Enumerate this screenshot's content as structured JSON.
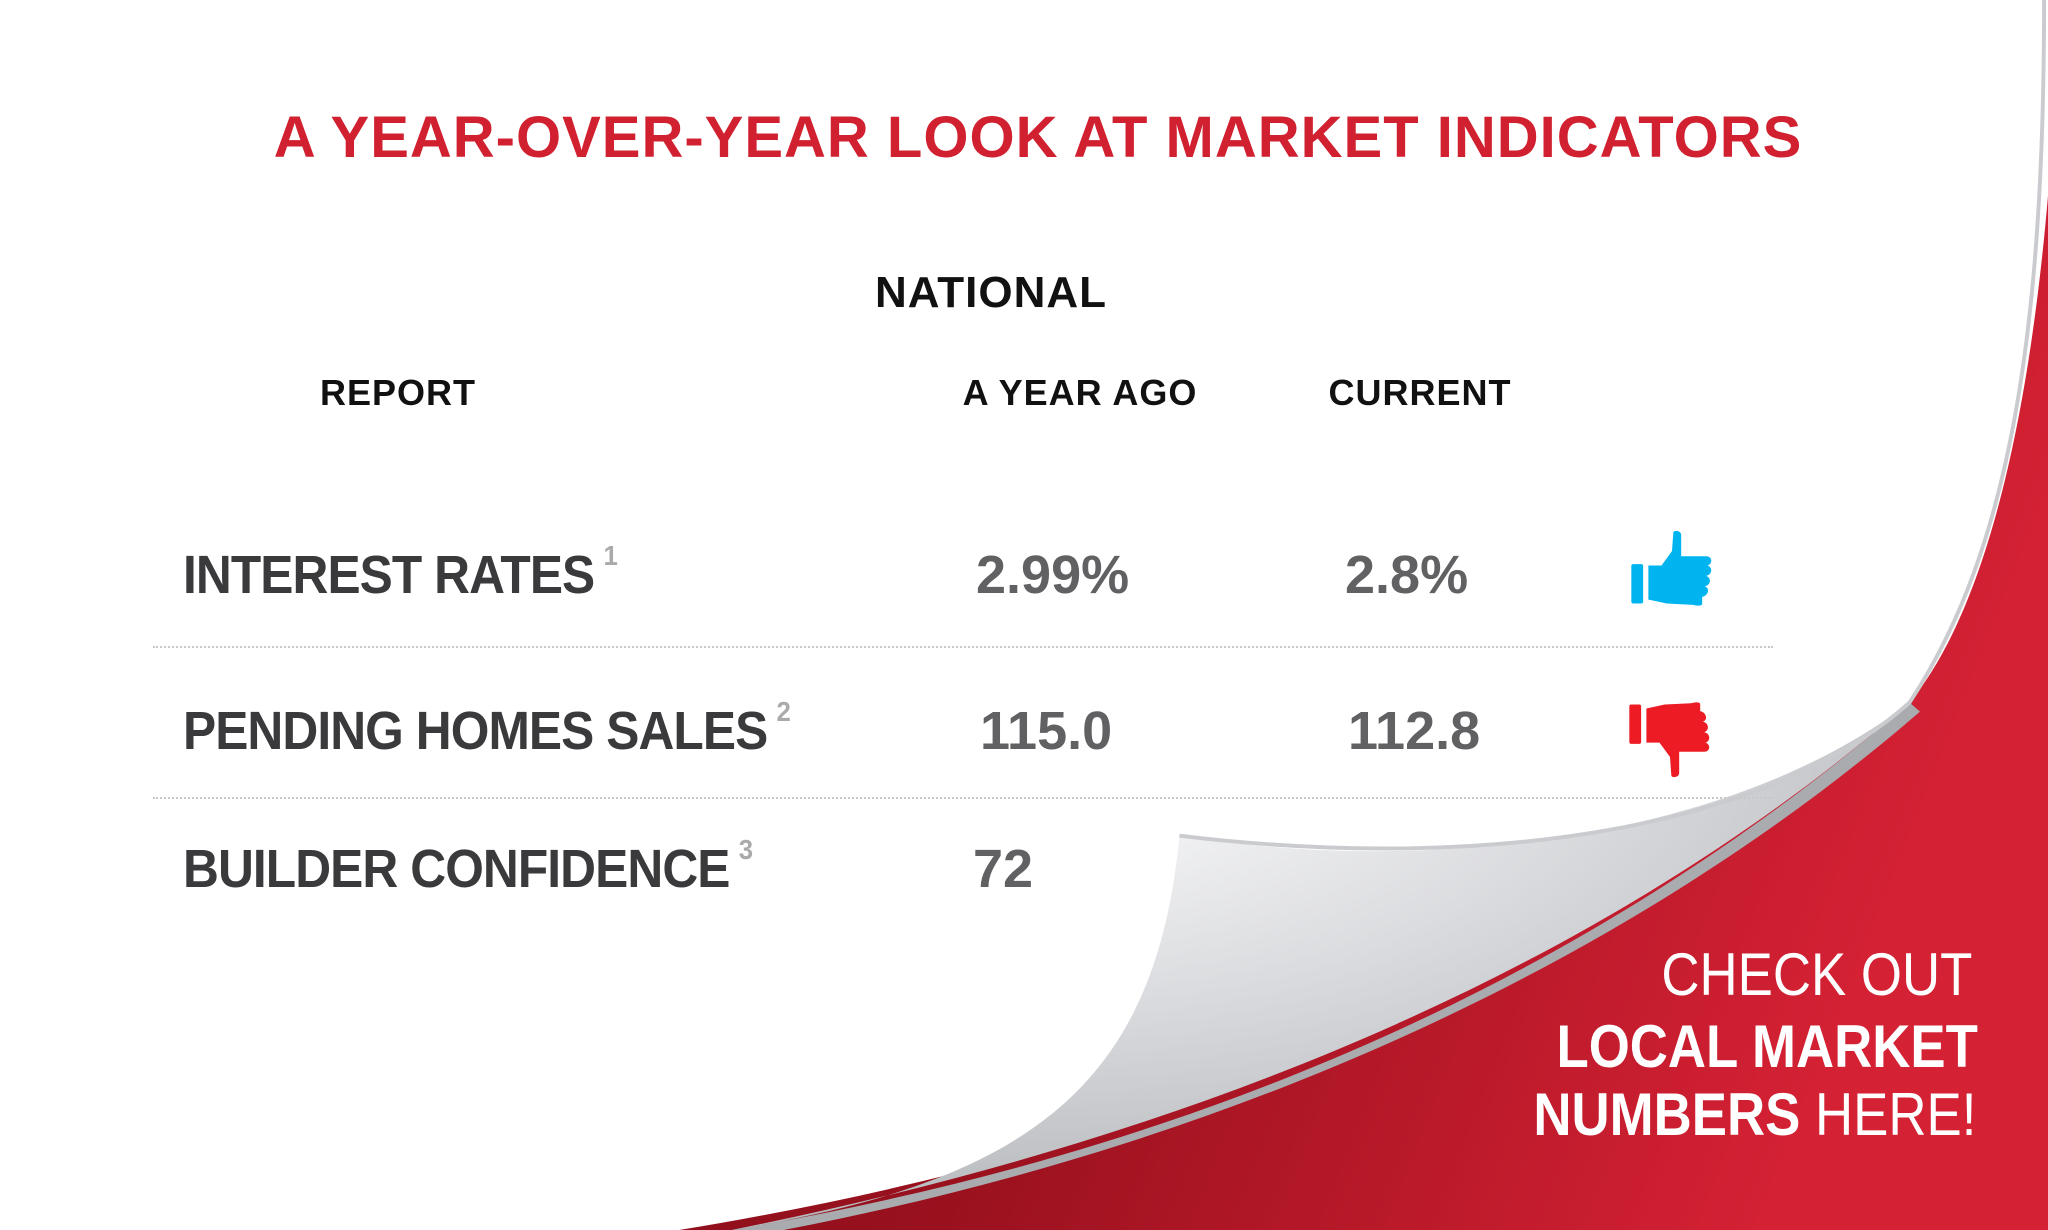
{
  "title": "A YEAR-OVER-YEAR LOOK AT MARKET INDICATORS",
  "section": "NATIONAL",
  "columns": {
    "report": "REPORT",
    "year_ago": "A YEAR AGO",
    "current": "CURRENT"
  },
  "rows": [
    {
      "label": "INTEREST RATES",
      "footnote": "1",
      "year_ago": "2.99%",
      "current": "2.8%",
      "trend_icon": "thumbs-up-icon",
      "trend_color": "#00b5ef"
    },
    {
      "label": "PENDING HOMES SALES",
      "footnote": "2",
      "year_ago": "115.0",
      "current": "112.8",
      "trend_icon": "thumbs-down-icon",
      "trend_color": "#ed1c24"
    },
    {
      "label": "BUILDER CONFIDENCE",
      "footnote": "3",
      "year_ago": "72",
      "current": "",
      "trend_icon": "",
      "trend_color": ""
    }
  ],
  "cta": {
    "line1": "CHECK OUT",
    "line2": "LOCAL MARKET",
    "line3_bold": "NUMBERS",
    "line3_thin": " HERE!"
  },
  "colors": {
    "accent": "#d1202f",
    "dark_red": "#8e0f1c",
    "label": "#3a3a3c",
    "value": "#616163"
  }
}
